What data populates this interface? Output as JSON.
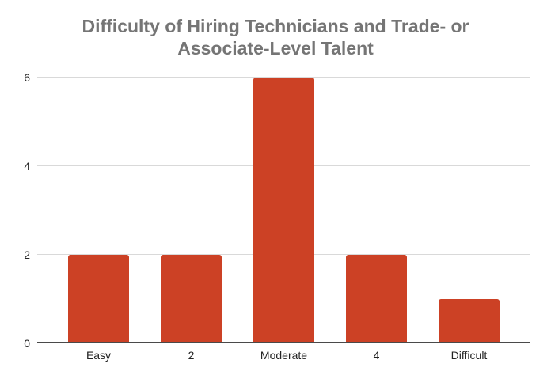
{
  "chart_data": {
    "type": "bar",
    "title": "Difficulty of Hiring Technicians and Trade- or Associate-Level Talent",
    "categories": [
      "Easy",
      "2",
      "Moderate",
      "4",
      "Difficult"
    ],
    "values": [
      2,
      2,
      6,
      2,
      1
    ],
    "xlabel": "",
    "ylabel": "",
    "ylim": [
      0,
      6
    ],
    "yticks": [
      0,
      2,
      4,
      6
    ],
    "grid": true,
    "legend_position": "none",
    "colors": {
      "bar": "#cc4125",
      "title": "#757575",
      "tick_labels": "#222222",
      "gridline": "#d9d9d9",
      "axis_line": "#4a4a4a",
      "background": "#ffffff"
    }
  }
}
